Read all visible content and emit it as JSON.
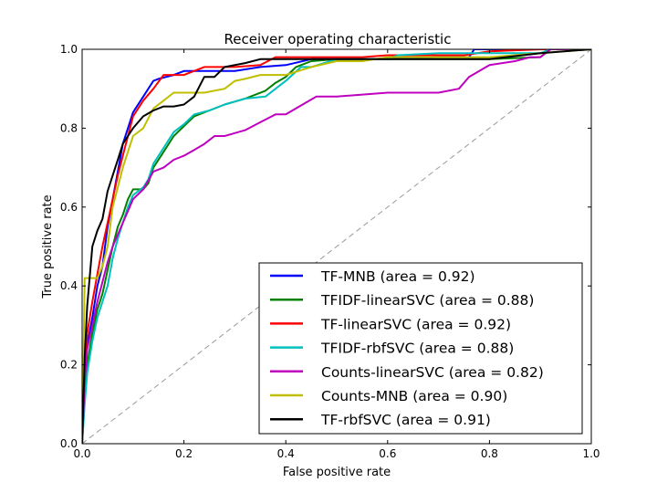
{
  "chart_data": {
    "type": "line",
    "title": "Receiver operating characteristic",
    "xlabel": "False positive rate",
    "ylabel": "True positive rate",
    "xlim": [
      0.0,
      1.0
    ],
    "ylim": [
      0.0,
      1.0
    ],
    "xticks": [
      "0.0",
      "0.2",
      "0.4",
      "0.6",
      "0.8",
      "1.0"
    ],
    "yticks": [
      "0.0",
      "0.2",
      "0.4",
      "0.6",
      "0.8",
      "1.0"
    ],
    "grid": false,
    "legend_position": "lower-right",
    "reference_line": {
      "x": [
        0,
        1
      ],
      "y": [
        0,
        1
      ],
      "style": "dashed",
      "color": "#999999"
    },
    "series": [
      {
        "name": "TF-MNB (area = 0.92)",
        "color": "#0000ff",
        "x": [
          0,
          0.005,
          0.01,
          0.02,
          0.03,
          0.04,
          0.05,
          0.06,
          0.07,
          0.08,
          0.09,
          0.1,
          0.12,
          0.14,
          0.15,
          0.18,
          0.2,
          0.22,
          0.3,
          0.35,
          0.4,
          0.45,
          0.6,
          0.7,
          0.76,
          0.77,
          0.8,
          1.0
        ],
        "y": [
          0,
          0.15,
          0.25,
          0.32,
          0.4,
          0.45,
          0.55,
          0.62,
          0.69,
          0.76,
          0.8,
          0.84,
          0.88,
          0.92,
          0.925,
          0.935,
          0.945,
          0.945,
          0.945,
          0.955,
          0.96,
          0.975,
          0.975,
          0.98,
          0.98,
          1.0,
          1.0,
          1.0
        ]
      },
      {
        "name": "TFIDF-linearSVC (area = 0.88)",
        "color": "#008000",
        "x": [
          0,
          0.005,
          0.01,
          0.02,
          0.03,
          0.04,
          0.05,
          0.06,
          0.07,
          0.08,
          0.09,
          0.1,
          0.12,
          0.13,
          0.14,
          0.16,
          0.18,
          0.2,
          0.22,
          0.25,
          0.28,
          0.32,
          0.36,
          0.38,
          0.4,
          0.42,
          0.45,
          0.5,
          0.6,
          0.7,
          0.8,
          0.9,
          0.92,
          1.0
        ],
        "y": [
          0,
          0.12,
          0.2,
          0.28,
          0.34,
          0.38,
          0.44,
          0.5,
          0.55,
          0.58,
          0.62,
          0.645,
          0.645,
          0.66,
          0.7,
          0.74,
          0.78,
          0.805,
          0.83,
          0.845,
          0.86,
          0.875,
          0.895,
          0.915,
          0.93,
          0.955,
          0.97,
          0.975,
          0.975,
          0.975,
          0.975,
          0.98,
          1.0,
          1.0
        ]
      },
      {
        "name": "TF-linearSVC (area = 0.92)",
        "color": "#ff0000",
        "x": [
          0,
          0.005,
          0.01,
          0.02,
          0.03,
          0.04,
          0.05,
          0.06,
          0.07,
          0.08,
          0.09,
          0.1,
          0.12,
          0.14,
          0.16,
          0.2,
          0.24,
          0.3,
          0.35,
          0.38,
          0.4,
          0.45,
          0.55,
          0.6,
          0.75,
          0.8,
          0.9,
          1.0
        ],
        "y": [
          0,
          0.18,
          0.28,
          0.36,
          0.43,
          0.5,
          0.56,
          0.62,
          0.68,
          0.73,
          0.78,
          0.83,
          0.87,
          0.9,
          0.935,
          0.935,
          0.955,
          0.955,
          0.96,
          0.98,
          0.98,
          0.98,
          0.98,
          0.985,
          0.985,
          0.995,
          1.0,
          1.0
        ]
      },
      {
        "name": "TFIDF-rbfSVC (area = 0.88)",
        "color": "#00bfbf",
        "x": [
          0,
          0.005,
          0.01,
          0.02,
          0.03,
          0.04,
          0.05,
          0.06,
          0.07,
          0.08,
          0.09,
          0.1,
          0.12,
          0.13,
          0.14,
          0.16,
          0.18,
          0.2,
          0.22,
          0.25,
          0.28,
          0.32,
          0.36,
          0.38,
          0.4,
          0.43,
          0.45,
          0.5,
          0.6,
          0.62,
          0.7,
          0.8,
          0.9,
          0.92,
          1.0
        ],
        "y": [
          0,
          0.1,
          0.18,
          0.26,
          0.32,
          0.36,
          0.4,
          0.47,
          0.52,
          0.56,
          0.6,
          0.63,
          0.65,
          0.67,
          0.71,
          0.75,
          0.79,
          0.81,
          0.835,
          0.845,
          0.86,
          0.875,
          0.88,
          0.9,
          0.92,
          0.955,
          0.955,
          0.975,
          0.975,
          0.985,
          0.99,
          0.99,
          0.99,
          1.0,
          1.0
        ]
      },
      {
        "name": "Counts-linearSVC (area = 0.82)",
        "color": "#bf00bf",
        "x": [
          0,
          0.005,
          0.01,
          0.02,
          0.03,
          0.04,
          0.05,
          0.06,
          0.08,
          0.1,
          0.12,
          0.14,
          0.16,
          0.18,
          0.2,
          0.22,
          0.24,
          0.26,
          0.28,
          0.32,
          0.35,
          0.38,
          0.4,
          0.44,
          0.46,
          0.48,
          0.5,
          0.6,
          0.7,
          0.74,
          0.76,
          0.8,
          0.85,
          0.88,
          0.9,
          0.92,
          1.0
        ],
        "y": [
          0,
          0.16,
          0.24,
          0.3,
          0.36,
          0.41,
          0.46,
          0.5,
          0.56,
          0.62,
          0.645,
          0.69,
          0.7,
          0.72,
          0.73,
          0.745,
          0.76,
          0.78,
          0.78,
          0.795,
          0.815,
          0.835,
          0.835,
          0.865,
          0.88,
          0.88,
          0.88,
          0.89,
          0.89,
          0.9,
          0.93,
          0.96,
          0.97,
          0.98,
          0.98,
          1.0,
          1.0
        ]
      },
      {
        "name": "Counts-MNB (area = 0.90)",
        "color": "#bfbf00",
        "x": [
          0,
          0.005,
          0.01,
          0.02,
          0.03,
          0.04,
          0.05,
          0.06,
          0.07,
          0.08,
          0.09,
          0.1,
          0.12,
          0.14,
          0.16,
          0.18,
          0.2,
          0.24,
          0.28,
          0.3,
          0.32,
          0.35,
          0.4,
          0.45,
          0.5,
          0.55,
          0.6,
          0.7,
          0.8,
          0.9,
          1.0
        ],
        "y": [
          0,
          0.42,
          0.42,
          0.42,
          0.42,
          0.45,
          0.5,
          0.6,
          0.65,
          0.7,
          0.74,
          0.78,
          0.8,
          0.85,
          0.87,
          0.89,
          0.89,
          0.89,
          0.9,
          0.92,
          0.925,
          0.935,
          0.935,
          0.955,
          0.97,
          0.97,
          0.98,
          0.98,
          0.98,
          0.99,
          1.0
        ]
      },
      {
        "name": "TF-rbfSVC (area = 0.91)",
        "color": "#000000",
        "x": [
          0,
          0.005,
          0.01,
          0.02,
          0.03,
          0.04,
          0.05,
          0.06,
          0.07,
          0.08,
          0.09,
          0.1,
          0.12,
          0.14,
          0.16,
          0.18,
          0.2,
          0.22,
          0.24,
          0.26,
          0.28,
          0.32,
          0.35,
          0.4,
          0.5,
          0.6,
          0.7,
          0.8,
          0.9,
          1.0
        ],
        "y": [
          0,
          0.22,
          0.35,
          0.5,
          0.54,
          0.57,
          0.64,
          0.68,
          0.72,
          0.76,
          0.78,
          0.8,
          0.83,
          0.845,
          0.855,
          0.855,
          0.86,
          0.88,
          0.93,
          0.93,
          0.955,
          0.965,
          0.975,
          0.975,
          0.975,
          0.975,
          0.975,
          0.975,
          0.99,
          1.0
        ]
      }
    ]
  }
}
